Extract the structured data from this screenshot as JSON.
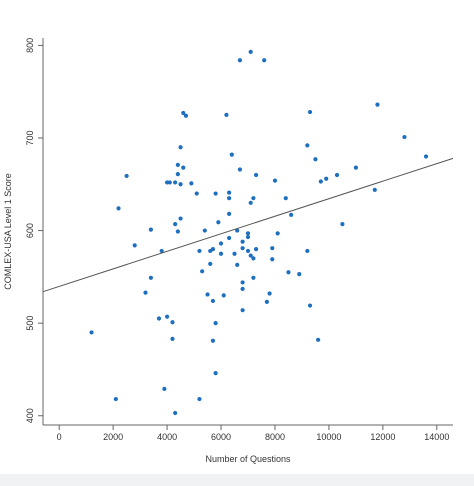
{
  "chart_data": {
    "type": "scatter",
    "title": "",
    "xlabel": "Number of Questions",
    "ylabel": "COMLEX-USA Level 1 Score",
    "xlim": [
      -600,
      14600
    ],
    "ylim": [
      390,
      808
    ],
    "x_ticks": [
      0,
      2000,
      4000,
      6000,
      8000,
      10000,
      12000,
      14000
    ],
    "y_ticks": [
      400,
      500,
      600,
      700,
      800
    ],
    "grid": false,
    "legend": "none",
    "point_color": "#1f6fbf",
    "line_color": "#555555",
    "trendline": {
      "x": [
        -600,
        14600
      ],
      "y": [
        534,
        678
      ]
    },
    "points": [
      [
        1200,
        490
      ],
      [
        2100,
        418
      ],
      [
        2200,
        624
      ],
      [
        2500,
        659
      ],
      [
        2800,
        584
      ],
      [
        3200,
        533
      ],
      [
        3400,
        549
      ],
      [
        3400,
        601
      ],
      [
        3700,
        505
      ],
      [
        3900,
        429
      ],
      [
        3800,
        578
      ],
      [
        4000,
        507
      ],
      [
        4000,
        652
      ],
      [
        4100,
        652
      ],
      [
        4200,
        483
      ],
      [
        4200,
        501
      ],
      [
        4300,
        403
      ],
      [
        4300,
        607
      ],
      [
        4300,
        652
      ],
      [
        4400,
        661
      ],
      [
        4400,
        671
      ],
      [
        4400,
        599
      ],
      [
        4500,
        613
      ],
      [
        4500,
        650
      ],
      [
        4500,
        690
      ],
      [
        4600,
        668
      ],
      [
        4600,
        727
      ],
      [
        4700,
        724
      ],
      [
        4900,
        651
      ],
      [
        5100,
        640
      ],
      [
        5200,
        418
      ],
      [
        5200,
        578
      ],
      [
        5300,
        556
      ],
      [
        5400,
        600
      ],
      [
        5500,
        531
      ],
      [
        5600,
        564
      ],
      [
        5600,
        578
      ],
      [
        5700,
        580
      ],
      [
        5700,
        524
      ],
      [
        5700,
        481
      ],
      [
        5800,
        500
      ],
      [
        5800,
        446
      ],
      [
        5800,
        640
      ],
      [
        5900,
        609
      ],
      [
        6000,
        586
      ],
      [
        6000,
        575
      ],
      [
        6100,
        530
      ],
      [
        6200,
        725
      ],
      [
        6300,
        641
      ],
      [
        6300,
        635
      ],
      [
        6300,
        592
      ],
      [
        6300,
        618
      ],
      [
        6400,
        682
      ],
      [
        6500,
        575
      ],
      [
        6600,
        563
      ],
      [
        6600,
        600
      ],
      [
        6700,
        666
      ],
      [
        6700,
        784
      ],
      [
        6800,
        588
      ],
      [
        6800,
        581
      ],
      [
        6800,
        544
      ],
      [
        6800,
        537
      ],
      [
        6800,
        514
      ],
      [
        7000,
        578
      ],
      [
        7000,
        597
      ],
      [
        7000,
        593
      ],
      [
        7100,
        793
      ],
      [
        7100,
        573
      ],
      [
        7200,
        549
      ],
      [
        7200,
        570
      ],
      [
        7100,
        630
      ],
      [
        7200,
        635
      ],
      [
        7300,
        660
      ],
      [
        7300,
        580
      ],
      [
        7600,
        784
      ],
      [
        7700,
        523
      ],
      [
        7800,
        532
      ],
      [
        7900,
        581
      ],
      [
        7900,
        569
      ],
      [
        8000,
        654
      ],
      [
        8100,
        597
      ],
      [
        8400,
        635
      ],
      [
        8500,
        555
      ],
      [
        8600,
        617
      ],
      [
        8900,
        553
      ],
      [
        9200,
        692
      ],
      [
        9300,
        728
      ],
      [
        9200,
        578
      ],
      [
        9300,
        519
      ],
      [
        9500,
        677
      ],
      [
        9600,
        482
      ],
      [
        9700,
        653
      ],
      [
        9900,
        656
      ],
      [
        10300,
        660
      ],
      [
        10500,
        607
      ],
      [
        11000,
        668
      ],
      [
        11700,
        644
      ],
      [
        11800,
        736
      ],
      [
        12800,
        701
      ],
      [
        13600,
        680
      ]
    ]
  }
}
